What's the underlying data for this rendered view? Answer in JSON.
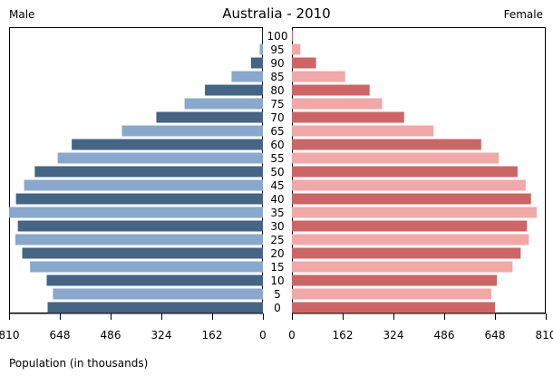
{
  "chart_data": {
    "type": "bar",
    "title": "Australia - 2010",
    "left_label": "Male",
    "right_label": "Female",
    "xlabel": "Population (in thousands)",
    "age_groups": [
      "0",
      "5",
      "10",
      "15",
      "20",
      "25",
      "30",
      "35",
      "40",
      "45",
      "50",
      "55",
      "60",
      "65",
      "70",
      "75",
      "80",
      "85",
      "90",
      "95",
      "100"
    ],
    "xlim": [
      0,
      810
    ],
    "male_ticks": [
      "810",
      "648",
      "486",
      "324",
      "162",
      "0"
    ],
    "female_ticks": [
      "0",
      "162",
      "324",
      "486",
      "648",
      "810"
    ],
    "series": [
      {
        "name": "Male",
        "values": [
          687,
          670,
          690,
          743,
          768,
          790,
          782,
          810,
          788,
          762,
          728,
          655,
          610,
          450,
          340,
          250,
          185,
          100,
          38,
          10,
          1
        ]
      },
      {
        "name": "Female",
        "values": [
          648,
          636,
          654,
          704,
          730,
          756,
          750,
          781,
          763,
          746,
          720,
          660,
          604,
          452,
          358,
          288,
          248,
          170,
          77,
          27,
          3
        ]
      }
    ],
    "colors": {
      "male_dark": "#466484",
      "male_light": "#8aa8cc",
      "female_dark": "#cc6666",
      "female_light": "#f0a8a8"
    }
  }
}
